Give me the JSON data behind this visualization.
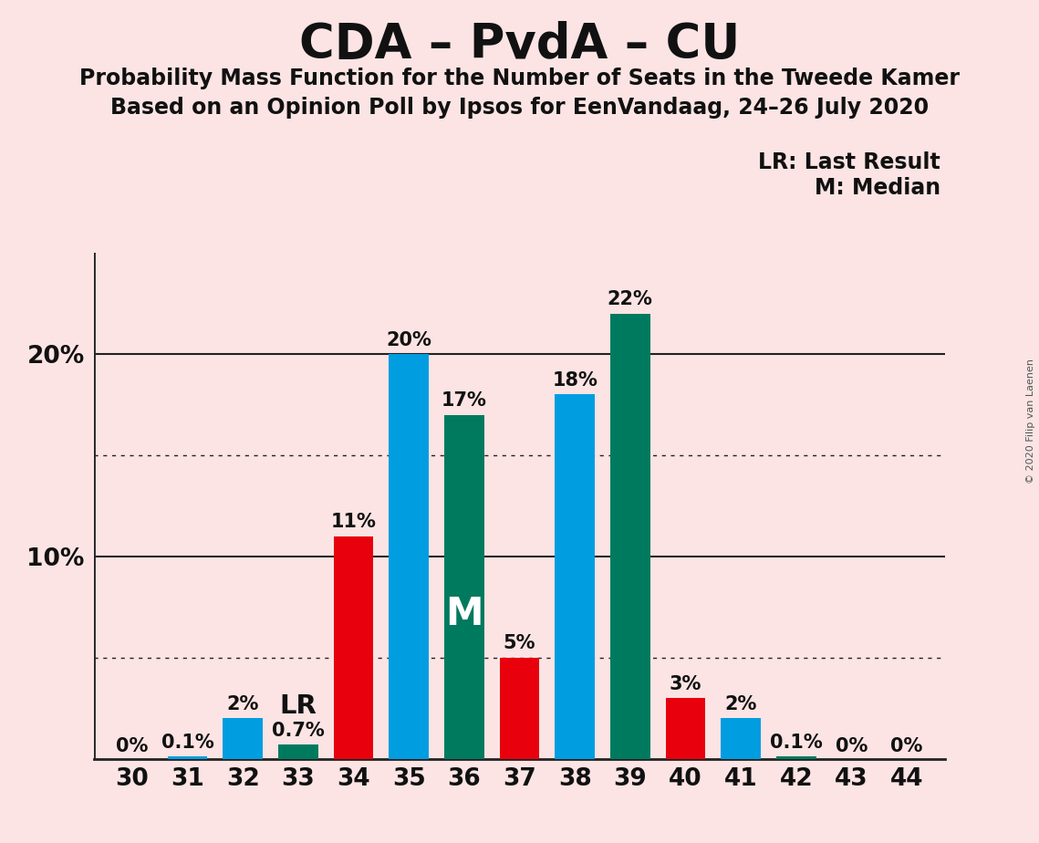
{
  "title": "CDA – PvdA – CU",
  "subtitle1": "Probability Mass Function for the Number of Seats in the Tweede Kamer",
  "subtitle2": "Based on an Opinion Poll by Ipsos for EenVandaag, 24–26 July 2020",
  "copyright": "© 2020 Filip van Laenen",
  "legend_lr": "LR: Last Result",
  "legend_m": "M: Median",
  "seats": [
    30,
    31,
    32,
    33,
    34,
    35,
    36,
    37,
    38,
    39,
    40,
    41,
    42,
    43,
    44
  ],
  "values": [
    0.0,
    0.1,
    2.0,
    0.7,
    11.0,
    20.0,
    17.0,
    5.0,
    18.0,
    22.0,
    3.0,
    2.0,
    0.1,
    0.0,
    0.0
  ],
  "bar_colors": [
    "#e8000d",
    "#009de0",
    "#009de0",
    "#007a5e",
    "#e8000d",
    "#009de0",
    "#007a5e",
    "#e8000d",
    "#009de0",
    "#007a5e",
    "#e8000d",
    "#009de0",
    "#007a5e",
    "#e8000d",
    "#009de0"
  ],
  "labels": [
    "0%",
    "0.1%",
    "2%",
    "0.7%",
    "11%",
    "20%",
    "17%",
    "5%",
    "18%",
    "22%",
    "3%",
    "2%",
    "0.1%",
    "0%",
    "0%"
  ],
  "lr_seat": 33,
  "median_seat": 36,
  "ylim": [
    0,
    25
  ],
  "background_color": "#fce4e4",
  "grid_color": "#222222",
  "dotted_grid_vals": [
    5,
    15
  ],
  "solid_grid_vals": [
    10,
    20
  ],
  "bar_width": 0.72,
  "title_fontsize": 38,
  "subtitle_fontsize": 17,
  "label_fontsize": 15,
  "tick_fontsize": 19,
  "lr_fontsize": 21,
  "m_fontsize": 30,
  "legend_fontsize": 17,
  "copyright_fontsize": 8
}
